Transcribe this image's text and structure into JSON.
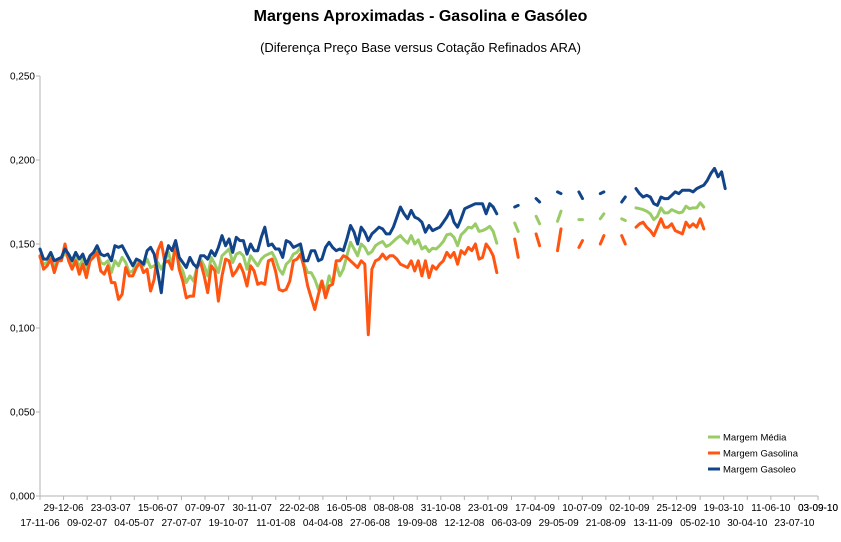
{
  "title": "Margens Aproximadas - Gasolina e Gasóleo",
  "subtitle": "(Diferença Preço Base versus Cotação Refinados ARA)",
  "chart_data": {
    "type": "line",
    "title": "Margens Aproximadas - Gasolina e Gasóleo",
    "subtitle": "(Diferença Preço Base versus Cotação Refinados ARA)",
    "xlabel": "",
    "ylabel": "",
    "ylim": [
      0,
      0.25
    ],
    "yticks": [
      "0,000",
      "0,050",
      "0,100",
      "0,150",
      "0,200",
      "0,250"
    ],
    "ytick_values": [
      0,
      0.05,
      0.1,
      0.15,
      0.2,
      0.25
    ],
    "grid": "none",
    "legend_position": "bottom-right",
    "xtick_labels_row1": [
      "29-12-06",
      "23-03-07",
      "15-06-07",
      "07-09-07",
      "30-11-07",
      "22-02-08",
      "16-05-08",
      "08-08-08",
      "31-10-08",
      "23-01-09",
      "17-04-09",
      "10-07-09",
      "02-10-09",
      "25-12-09",
      "19-03-10",
      "11-06-10",
      "03-09-10"
    ],
    "xtick_labels_row2": [
      "17-11-06",
      "09-02-07",
      "04-05-07",
      "27-07-07",
      "19-10-07",
      "11-01-08",
      "04-04-08",
      "27-06-08",
      "19-09-08",
      "12-12-08",
      "06-03-09",
      "29-05-09",
      "21-08-09",
      "13-11-09",
      "05-02-10",
      "30-04-10",
      "23-07-10"
    ],
    "x_start": "17-11-06",
    "x_end": "03-09-10",
    "x_step": "1 week",
    "series": [
      {
        "name": "Margem Média",
        "color": "#99cc66",
        "values": [
          0.142,
          0.138,
          0.139,
          0.143,
          0.136,
          0.14,
          0.141,
          0.145,
          0.141,
          0.138,
          0.142,
          0.136,
          0.141,
          0.134,
          0.141,
          0.143,
          0.146,
          0.139,
          0.138,
          0.14,
          0.133,
          0.14,
          0.137,
          0.142,
          0.139,
          0.133,
          0.134,
          0.138,
          0.139,
          0.137,
          0.141,
          0.136,
          0.137,
          0.139,
          0.135,
          0.14,
          0.145,
          0.137,
          0.151,
          0.138,
          0.134,
          0.127,
          0.131,
          0.128,
          0.136,
          0.141,
          0.137,
          0.131,
          0.142,
          0.138,
          0.133,
          0.143,
          0.145,
          0.147,
          0.139,
          0.144,
          0.145,
          0.143,
          0.135,
          0.143,
          0.14,
          0.137,
          0.141,
          0.143,
          0.144,
          0.145,
          0.141,
          0.135,
          0.132,
          0.138,
          0.14,
          0.144,
          0.145,
          0.148,
          0.138,
          0.133,
          0.133,
          0.129,
          0.123,
          0.128,
          0.121,
          0.131,
          0.126,
          0.138,
          0.131,
          0.135,
          0.143,
          0.151,
          0.147,
          0.143,
          0.15,
          0.148,
          0.144,
          null,
          null,
          null,
          null,
          null,
          null,
          null,
          null,
          null,
          null,
          null,
          null,
          null,
          null,
          null,
          null,
          null,
          null,
          null,
          null,
          null,
          null,
          null,
          null,
          null,
          null,
          null,
          null,
          null,
          null,
          null,
          null,
          null,
          null,
          null,
          null,
          null,
          null,
          null,
          null,
          null,
          null,
          null,
          null,
          null,
          null,
          null,
          null,
          null,
          null,
          null,
          null,
          null,
          null,
          null,
          null,
          null,
          null,
          null,
          null,
          null,
          null,
          null,
          null,
          null,
          null,
          null,
          null,
          null,
          null,
          null,
          null,
          null,
          null,
          null,
          null,
          null,
          null,
          null,
          null,
          null,
          null,
          null,
          null,
          null,
          null,
          null,
          null,
          null,
          null,
          null,
          null,
          null,
          null,
          null,
          null,
          null,
          null,
          null,
          null,
          null,
          null,
          null,
          null,
          null,
          null,
          null,
          null,
          null,
          null,
          null,
          null,
          null,
          null,
          null,
          null,
          null,
          null,
          null,
          null,
          null,
          null,
          null,
          null,
          null,
          null
        ]
      },
      {
        "name": "Margem Gasolina",
        "color": "#ff5511",
        "values": [
          0.143,
          0.135,
          0.137,
          0.141,
          0.133,
          0.14,
          0.14,
          0.15,
          0.14,
          0.135,
          0.14,
          0.132,
          0.138,
          0.13,
          0.14,
          0.142,
          0.145,
          0.134,
          0.132,
          0.137,
          0.127,
          0.127,
          0.117,
          0.12,
          0.136,
          0.131,
          0.131,
          0.136,
          0.139,
          0.133,
          0.135,
          0.122,
          0.129,
          0.146,
          0.151,
          0.139,
          0.14,
          0.135,
          0.15,
          0.135,
          0.128,
          0.118,
          0.119,
          0.119,
          0.136,
          0.139,
          0.131,
          0.121,
          0.137,
          0.134,
          0.116,
          0.131,
          0.141,
          0.14,
          0.131,
          0.134,
          0.138,
          0.133,
          0.125,
          0.137,
          0.134,
          0.126,
          0.127,
          0.126,
          0.14,
          0.141,
          0.134,
          0.123,
          0.122,
          0.123,
          0.128,
          0.14,
          0.141,
          0.144,
          0.136,
          0.125,
          0.118,
          0.111,
          0.12,
          0.128,
          0.118,
          0.125,
          0.126,
          0.14,
          0.14,
          0.143,
          0.142,
          0.14,
          0.138,
          0.136,
          0.14,
          0.138,
          0.096,
          0.135,
          0.14,
          0.141,
          0.144,
          0.141,
          0.143,
          0.143,
          0.141,
          0.138,
          0.137,
          0.136,
          0.14,
          0.134,
          0.14,
          0.131,
          0.14,
          0.13,
          0.137,
          0.135,
          0.138,
          0.14,
          0.145,
          0.142,
          0.145,
          0.138,
          0.146,
          0.144,
          0.148,
          0.146,
          0.15,
          0.141,
          0.142,
          0.15,
          0.147,
          0.143,
          0.133,
          0.148,
          0.15,
          0.156,
          0.146,
          0.153,
          0.142,
          0.148,
          0.145,
          0.155,
          0.15,
          0.156,
          0.149,
          0.157,
          0.162,
          0.15,
          0.155,
          0.146,
          0.159,
          0.151,
          0.144,
          0.155,
          0.15,
          0.148,
          0.152,
          0.148,
          0.152,
          0.157,
          0.153,
          0.15,
          0.155,
          0.153,
          0.156,
          0.152,
          0.158,
          0.155,
          0.15,
          0.16,
          0.158,
          0.16,
          0.162,
          0.163,
          0.16,
          0.158,
          0.155,
          0.16,
          0.165,
          0.16,
          0.16,
          0.162,
          0.158,
          0.157,
          0.156,
          0.163,
          0.16,
          0.162,
          0.16,
          0.165,
          0.159
        ]
      },
      {
        "name": "Margem Gasoleo",
        "color": "#114488",
        "values": [
          0.147,
          0.141,
          0.141,
          0.145,
          0.14,
          0.141,
          0.142,
          0.147,
          0.144,
          0.14,
          0.145,
          0.141,
          0.144,
          0.138,
          0.143,
          0.145,
          0.149,
          0.144,
          0.143,
          0.144,
          0.14,
          0.149,
          0.148,
          0.149,
          0.145,
          0.141,
          0.137,
          0.141,
          0.14,
          0.138,
          0.146,
          0.148,
          0.144,
          0.133,
          0.121,
          0.141,
          0.149,
          0.146,
          0.152,
          0.142,
          0.139,
          0.136,
          0.142,
          0.138,
          0.136,
          0.143,
          0.143,
          0.141,
          0.146,
          0.143,
          0.148,
          0.155,
          0.149,
          0.153,
          0.145,
          0.154,
          0.152,
          0.152,
          0.144,
          0.15,
          0.146,
          0.146,
          0.154,
          0.16,
          0.149,
          0.15,
          0.147,
          0.147,
          0.142,
          0.152,
          0.151,
          0.148,
          0.149,
          0.15,
          0.14,
          0.14,
          0.146,
          0.146,
          0.14,
          0.141,
          0.148,
          0.151,
          0.148,
          0.146,
          0.147,
          0.146,
          0.153,
          0.161,
          0.157,
          0.15,
          0.16,
          0.157,
          0.152,
          0.156,
          0.158,
          0.16,
          0.159,
          0.156,
          0.156,
          0.16,
          0.166,
          0.172,
          0.168,
          0.165,
          0.17,
          0.166,
          0.165,
          0.163,
          0.157,
          0.161,
          0.158,
          0.159,
          0.16,
          0.163,
          0.166,
          0.17,
          0.163,
          0.16,
          0.165,
          0.171,
          0.172,
          0.173,
          0.174,
          0.174,
          0.174,
          0.168,
          0.174,
          0.172,
          0.168,
          0.167,
          0.17,
          0.172,
          0.173,
          0.172,
          0.173,
          0.175,
          0.173,
          0.175,
          0.176,
          0.177,
          0.175,
          0.176,
          0.175,
          0.18,
          0.181,
          0.181,
          0.18,
          0.183,
          0.176,
          0.18,
          0.18,
          0.181,
          0.177,
          0.176,
          0.177,
          0.176,
          0.18,
          0.18,
          0.181,
          0.181,
          0.178,
          0.181,
          0.176,
          0.175,
          0.178,
          0.176,
          0.18,
          0.183,
          0.18,
          0.178,
          0.179,
          0.178,
          0.174,
          0.173,
          0.178,
          0.177,
          0.177,
          0.179,
          0.181,
          0.18,
          0.182,
          0.182,
          0.182,
          0.181,
          0.183,
          0.184,
          0.185,
          0.188,
          0.192,
          0.195,
          0.19,
          0.193,
          0.183
        ]
      }
    ]
  },
  "legend": [
    {
      "label": "Margem Média",
      "color": "#99cc66"
    },
    {
      "label": "Margem Gasolina",
      "color": "#ff5511"
    },
    {
      "label": "Margem Gasoleo",
      "color": "#114488"
    }
  ]
}
